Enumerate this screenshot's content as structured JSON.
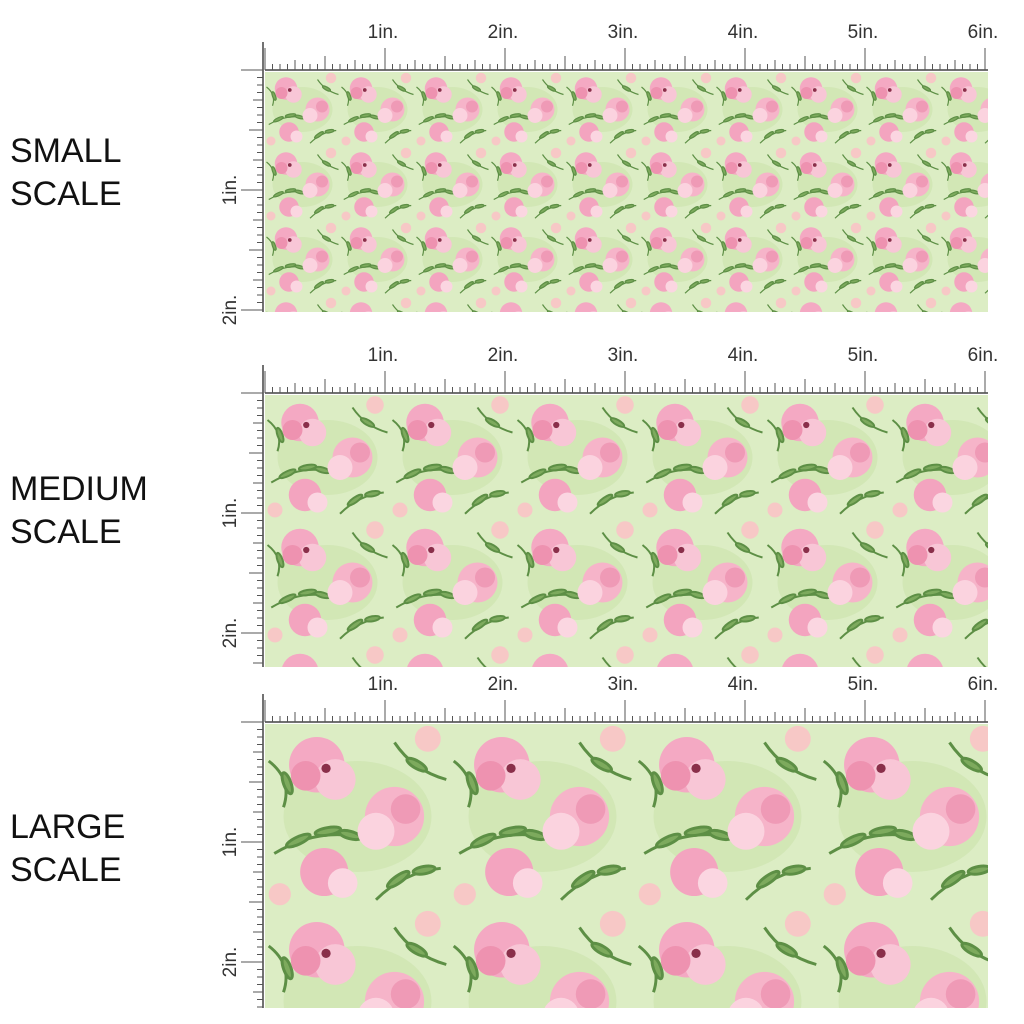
{
  "sections": [
    {
      "label_lines": [
        "SMALL",
        "SCALE"
      ]
    },
    {
      "label_lines": [
        "MEDIUM",
        "SCALE"
      ]
    },
    {
      "label_lines": [
        "LARGE",
        "SCALE"
      ]
    }
  ],
  "ruler": {
    "x_labels": [
      "1in.",
      "2in.",
      "3in.",
      "4in.",
      "5in.",
      "6in."
    ],
    "y_labels": [
      "1in.",
      "2in."
    ]
  }
}
